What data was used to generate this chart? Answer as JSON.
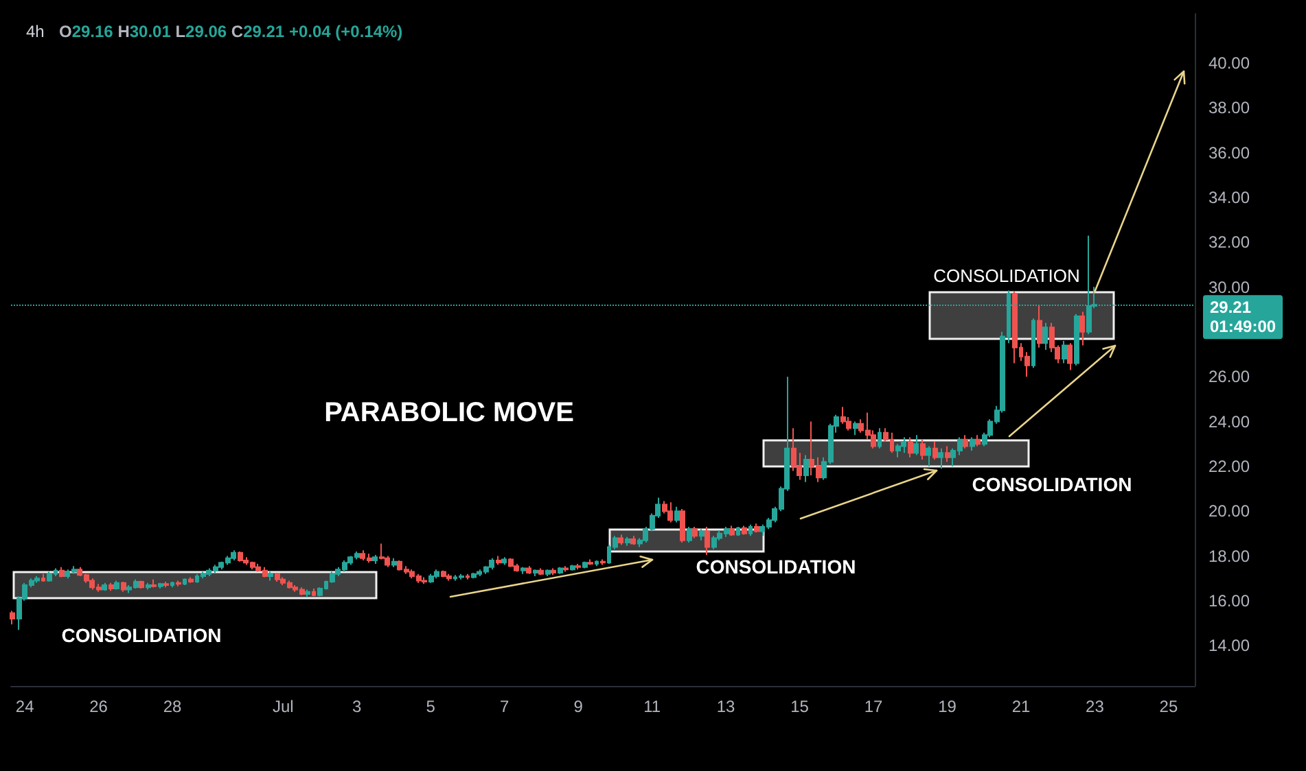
{
  "chart_data": {
    "type": "candlestick",
    "title": "4h",
    "subtitle": "O29.16 H30.01 L29.06 C29.21 +0.04 (+0.14%)",
    "x": [
      "--06-23T16:00",
      "--06-23T20:00",
      "--06-24T00:00",
      "--06-24T04:00",
      "--06-24T08:00",
      "--06-24T12:00",
      "--06-24T16:00",
      "--06-24T20:00",
      "--06-25T00:00",
      "--06-25T04:00",
      "--06-25T08:00",
      "--06-25T12:00",
      "--06-25T16:00",
      "--06-25T20:00",
      "--06-26T00:00",
      "--06-26T04:00",
      "--06-26T08:00",
      "--06-26T12:00",
      "--06-26T16:00",
      "--06-26T20:00",
      "--06-27T00:00",
      "--06-27T04:00",
      "--06-27T08:00",
      "--06-27T12:00",
      "--06-27T16:00",
      "--06-27T20:00",
      "--06-28T00:00",
      "--06-28T04:00",
      "--06-28T08:00",
      "--06-28T12:00",
      "--06-28T16:00",
      "--06-28T20:00",
      "--06-29T00:00",
      "--06-29T04:00",
      "--06-29T08:00",
      "--06-29T12:00",
      "--06-29T16:00",
      "--06-29T20:00",
      "--06-30T00:00",
      "--06-30T04:00",
      "--06-30T08:00",
      "--06-30T12:00",
      "--06-30T16:00",
      "--06-30T20:00",
      "--07-01T00:00",
      "--07-01T04:00",
      "--07-01T08:00",
      "--07-01T12:00",
      "--07-01T16:00",
      "--07-01T20:00",
      "--07-02T00:00",
      "--07-02T04:00",
      "--07-02T08:00",
      "--07-02T12:00",
      "--07-02T16:00",
      "--07-02T20:00",
      "--07-03T00:00",
      "--07-03T04:00",
      "--07-03T08:00",
      "--07-03T12:00",
      "--07-03T16:00",
      "--07-03T20:00",
      "--07-04T00:00",
      "--07-04T04:00",
      "--07-04T08:00",
      "--07-04T12:00",
      "--07-04T16:00",
      "--07-04T20:00",
      "--07-05T00:00",
      "--07-05T04:00",
      "--07-05T08:00",
      "--07-05T12:00",
      "--07-05T16:00",
      "--07-05T20:00",
      "--07-06T00:00",
      "--07-06T04:00",
      "--07-06T08:00",
      "--07-06T12:00",
      "--07-06T16:00",
      "--07-06T20:00",
      "--07-07T00:00",
      "--07-07T04:00",
      "--07-07T08:00",
      "--07-07T12:00",
      "--07-07T16:00",
      "--07-07T20:00",
      "--07-08T00:00",
      "--07-08T04:00",
      "--07-08T08:00",
      "--07-08T12:00",
      "--07-08T16:00",
      "--07-08T20:00",
      "--07-09T00:00",
      "--07-09T04:00",
      "--07-09T08:00",
      "--07-09T12:00",
      "--07-09T16:00",
      "--07-09T20:00",
      "--07-10T00:00",
      "--07-10T04:00",
      "--07-10T08:00",
      "--07-10T12:00",
      "--07-10T16:00",
      "--07-10T20:00",
      "--07-11T00:00",
      "--07-11T04:00",
      "--07-11T08:00",
      "--07-11T12:00",
      "--07-11T16:00",
      "--07-11T20:00",
      "--07-12T00:00",
      "--07-12T04:00",
      "--07-12T08:00",
      "--07-12T12:00",
      "--07-12T16:00",
      "--07-12T20:00",
      "--07-13T00:00",
      "--07-13T04:00",
      "--07-13T08:00",
      "--07-13T12:00",
      "--07-13T16:00",
      "--07-13T20:00",
      "--07-14T00:00",
      "--07-14T04:00",
      "--07-14T08:00",
      "--07-14T12:00",
      "--07-14T16:00",
      "--07-14T20:00",
      "--07-15T00:00",
      "--07-15T04:00",
      "--07-15T08:00",
      "--07-15T12:00",
      "--07-15T16:00",
      "--07-15T20:00",
      "--07-16T00:00",
      "--07-16T04:00",
      "--07-16T08:00",
      "--07-16T12:00",
      "--07-16T16:00",
      "--07-16T20:00",
      "--07-17T00:00",
      "--07-17T04:00",
      "--07-17T08:00",
      "--07-17T12:00",
      "--07-17T16:00",
      "--07-17T20:00",
      "--07-18T00:00",
      "--07-18T04:00",
      "--07-18T08:00",
      "--07-18T12:00",
      "--07-18T16:00",
      "--07-18T20:00",
      "--07-19T00:00",
      "--07-19T04:00",
      "--07-19T08:00",
      "--07-19T12:00",
      "--07-19T16:00",
      "--07-19T20:00",
      "--07-20T00:00",
      "--07-20T04:00",
      "--07-20T08:00",
      "--07-20T12:00",
      "--07-20T16:00",
      "--07-20T20:00",
      "--07-21T00:00",
      "--07-21T04:00",
      "--07-21T08:00",
      "--07-21T12:00",
      "--07-21T16:00",
      "--07-21T20:00",
      "--07-22T00:00",
      "--07-22T04:00",
      "--07-22T08:00",
      "--07-22T12:00",
      "--07-22T16:00",
      "--07-22T20:00",
      "--07-23T00:00"
    ],
    "ohlc": [
      [
        15.45,
        15.55,
        14.95,
        15.2
      ],
      [
        15.2,
        16.2,
        14.7,
        16.1
      ],
      [
        16.1,
        16.8,
        16.0,
        16.7
      ],
      [
        16.7,
        17.0,
        16.6,
        16.9
      ],
      [
        16.9,
        17.1,
        16.8,
        17.0
      ],
      [
        17.0,
        17.2,
        16.85,
        16.9
      ],
      [
        16.9,
        17.3,
        16.85,
        17.2
      ],
      [
        17.2,
        17.45,
        17.1,
        17.35
      ],
      [
        17.35,
        17.5,
        17.05,
        17.1
      ],
      [
        17.1,
        17.4,
        17.0,
        17.3
      ],
      [
        17.3,
        17.55,
        17.2,
        17.4
      ],
      [
        17.4,
        17.5,
        17.1,
        17.15
      ],
      [
        17.15,
        17.2,
        16.8,
        16.9
      ],
      [
        16.9,
        17.0,
        16.5,
        16.6
      ],
      [
        16.6,
        16.75,
        16.4,
        16.5
      ],
      [
        16.5,
        16.8,
        16.45,
        16.7
      ],
      [
        16.7,
        16.8,
        16.45,
        16.55
      ],
      [
        16.55,
        16.9,
        16.5,
        16.8
      ],
      [
        16.8,
        16.85,
        16.4,
        16.5
      ],
      [
        16.5,
        16.7,
        16.35,
        16.6
      ],
      [
        16.6,
        16.95,
        16.55,
        16.85
      ],
      [
        16.85,
        16.9,
        16.55,
        16.6
      ],
      [
        16.6,
        16.8,
        16.5,
        16.7
      ],
      [
        16.7,
        16.95,
        16.6,
        16.65
      ],
      [
        16.65,
        16.8,
        16.55,
        16.75
      ],
      [
        16.75,
        16.85,
        16.6,
        16.7
      ],
      [
        16.7,
        16.85,
        16.6,
        16.8
      ],
      [
        16.8,
        16.9,
        16.65,
        16.75
      ],
      [
        16.75,
        17.0,
        16.7,
        16.95
      ],
      [
        16.95,
        17.05,
        16.8,
        16.85
      ],
      [
        16.85,
        17.2,
        16.8,
        17.1
      ],
      [
        17.1,
        17.3,
        17.0,
        17.2
      ],
      [
        17.2,
        17.45,
        17.1,
        17.35
      ],
      [
        17.35,
        17.6,
        17.25,
        17.5
      ],
      [
        17.5,
        17.75,
        17.4,
        17.7
      ],
      [
        17.7,
        18.0,
        17.6,
        17.9
      ],
      [
        17.9,
        18.25,
        17.8,
        18.15
      ],
      [
        18.15,
        18.2,
        17.75,
        17.8
      ],
      [
        17.8,
        17.95,
        17.6,
        17.7
      ],
      [
        17.7,
        17.75,
        17.4,
        17.5
      ],
      [
        17.5,
        17.65,
        17.3,
        17.35
      ],
      [
        17.35,
        17.5,
        17.05,
        17.1
      ],
      [
        17.1,
        17.3,
        16.9,
        17.2
      ],
      [
        17.2,
        17.25,
        16.85,
        16.95
      ],
      [
        16.95,
        17.05,
        16.7,
        16.8
      ],
      [
        16.8,
        16.9,
        16.55,
        16.6
      ],
      [
        16.6,
        16.7,
        16.4,
        16.5
      ],
      [
        16.5,
        16.6,
        16.25,
        16.3
      ],
      [
        16.3,
        16.5,
        16.15,
        16.4
      ],
      [
        16.4,
        16.55,
        16.2,
        16.25
      ],
      [
        16.25,
        16.6,
        16.2,
        16.55
      ],
      [
        16.55,
        16.9,
        16.5,
        16.85
      ],
      [
        16.85,
        17.3,
        16.8,
        17.2
      ],
      [
        17.2,
        17.5,
        17.1,
        17.4
      ],
      [
        17.4,
        17.8,
        17.3,
        17.7
      ],
      [
        17.7,
        18.0,
        17.6,
        17.95
      ],
      [
        17.95,
        18.2,
        17.85,
        18.1
      ],
      [
        18.1,
        18.25,
        17.8,
        17.9
      ],
      [
        17.9,
        18.1,
        17.7,
        17.8
      ],
      [
        17.8,
        18.05,
        17.65,
        17.95
      ],
      [
        17.95,
        18.55,
        17.85,
        17.9
      ],
      [
        17.9,
        18.0,
        17.5,
        17.6
      ],
      [
        17.6,
        17.9,
        17.5,
        17.75
      ],
      [
        17.75,
        17.8,
        17.35,
        17.4
      ],
      [
        17.4,
        17.55,
        17.2,
        17.3
      ],
      [
        17.3,
        17.4,
        17.0,
        17.1
      ],
      [
        17.1,
        17.2,
        16.8,
        16.9
      ],
      [
        16.9,
        17.05,
        16.75,
        16.85
      ],
      [
        16.85,
        17.2,
        16.8,
        17.1
      ],
      [
        17.1,
        17.4,
        17.0,
        17.3
      ],
      [
        17.3,
        17.35,
        17.05,
        17.1
      ],
      [
        17.1,
        17.2,
        16.9,
        17.0
      ],
      [
        17.0,
        17.15,
        16.9,
        17.05
      ],
      [
        17.05,
        17.2,
        16.95,
        17.1
      ],
      [
        17.1,
        17.2,
        16.95,
        17.05
      ],
      [
        17.05,
        17.25,
        17.0,
        17.2
      ],
      [
        17.2,
        17.4,
        17.1,
        17.3
      ],
      [
        17.3,
        17.55,
        17.2,
        17.5
      ],
      [
        17.5,
        17.9,
        17.4,
        17.8
      ],
      [
        17.8,
        18.0,
        17.6,
        17.7
      ],
      [
        17.7,
        17.95,
        17.6,
        17.85
      ],
      [
        17.85,
        17.9,
        17.5,
        17.55
      ],
      [
        17.55,
        17.65,
        17.3,
        17.35
      ],
      [
        17.35,
        17.5,
        17.2,
        17.45
      ],
      [
        17.45,
        17.55,
        17.2,
        17.25
      ],
      [
        17.25,
        17.4,
        17.1,
        17.35
      ],
      [
        17.35,
        17.45,
        17.15,
        17.2
      ],
      [
        17.2,
        17.4,
        17.1,
        17.35
      ],
      [
        17.35,
        17.45,
        17.15,
        17.25
      ],
      [
        17.25,
        17.5,
        17.2,
        17.45
      ],
      [
        17.45,
        17.55,
        17.3,
        17.4
      ],
      [
        17.4,
        17.6,
        17.35,
        17.55
      ],
      [
        17.55,
        17.65,
        17.4,
        17.5
      ],
      [
        17.5,
        17.75,
        17.45,
        17.7
      ],
      [
        17.7,
        17.85,
        17.6,
        17.65
      ],
      [
        17.65,
        17.8,
        17.55,
        17.75
      ],
      [
        17.75,
        17.85,
        17.6,
        17.7
      ],
      [
        17.7,
        18.5,
        17.65,
        18.4
      ],
      [
        18.4,
        18.9,
        18.3,
        18.8
      ],
      [
        18.8,
        18.95,
        18.5,
        18.6
      ],
      [
        18.6,
        18.85,
        18.45,
        18.75
      ],
      [
        18.75,
        18.9,
        18.5,
        18.55
      ],
      [
        18.55,
        18.8,
        18.4,
        18.7
      ],
      [
        18.7,
        19.3,
        18.6,
        19.2
      ],
      [
        19.2,
        19.9,
        19.1,
        19.8
      ],
      [
        19.8,
        20.6,
        19.7,
        20.3
      ],
      [
        20.3,
        20.45,
        19.9,
        20.0
      ],
      [
        20.0,
        20.4,
        19.5,
        19.6
      ],
      [
        19.6,
        20.2,
        19.5,
        20.0
      ],
      [
        20.0,
        20.1,
        18.6,
        18.7
      ],
      [
        18.7,
        19.3,
        18.6,
        19.2
      ],
      [
        19.2,
        19.3,
        18.8,
        18.9
      ],
      [
        18.9,
        19.2,
        18.7,
        19.1
      ],
      [
        19.1,
        19.3,
        18.05,
        18.4
      ],
      [
        18.4,
        18.9,
        18.3,
        18.8
      ],
      [
        18.8,
        19.15,
        18.7,
        19.0
      ],
      [
        19.0,
        19.3,
        18.85,
        19.2
      ],
      [
        19.2,
        19.35,
        18.9,
        18.95
      ],
      [
        18.95,
        19.3,
        18.9,
        19.25
      ],
      [
        19.25,
        19.35,
        18.95,
        19.0
      ],
      [
        19.0,
        19.4,
        18.9,
        19.3
      ],
      [
        19.3,
        19.45,
        19.05,
        19.1
      ],
      [
        19.1,
        19.4,
        18.9,
        19.3
      ],
      [
        19.3,
        19.7,
        19.2,
        19.6
      ],
      [
        19.6,
        20.2,
        19.5,
        20.1
      ],
      [
        20.1,
        21.1,
        20.0,
        21.0
      ],
      [
        21.0,
        26.0,
        20.9,
        22.8
      ],
      [
        22.8,
        23.7,
        21.8,
        22.0
      ],
      [
        22.0,
        22.6,
        21.4,
        21.6
      ],
      [
        21.6,
        22.5,
        21.3,
        22.3
      ],
      [
        22.3,
        24.0,
        21.6,
        22.0
      ],
      [
        22.0,
        22.4,
        21.3,
        21.5
      ],
      [
        21.5,
        22.4,
        21.4,
        22.2
      ],
      [
        22.2,
        23.9,
        22.1,
        23.8
      ],
      [
        23.8,
        24.3,
        23.5,
        24.2
      ],
      [
        24.2,
        24.65,
        23.9,
        24.0
      ],
      [
        24.0,
        24.2,
        23.6,
        23.7
      ],
      [
        23.7,
        24.0,
        23.4,
        23.9
      ],
      [
        23.9,
        24.1,
        23.5,
        23.6
      ],
      [
        23.6,
        24.4,
        23.2,
        23.4
      ],
      [
        23.4,
        23.6,
        22.8,
        22.9
      ],
      [
        22.9,
        23.7,
        22.8,
        23.5
      ],
      [
        23.5,
        23.7,
        23.1,
        23.2
      ],
      [
        23.2,
        23.5,
        22.6,
        22.7
      ],
      [
        22.7,
        23.0,
        22.4,
        22.9
      ],
      [
        22.9,
        23.3,
        22.6,
        23.1
      ],
      [
        23.1,
        23.3,
        22.4,
        22.6
      ],
      [
        22.6,
        23.4,
        22.5,
        23.0
      ],
      [
        23.0,
        23.2,
        22.3,
        22.5
      ],
      [
        22.5,
        22.9,
        22.0,
        22.8
      ],
      [
        22.8,
        23.1,
        22.3,
        22.4
      ],
      [
        22.4,
        22.8,
        21.9,
        22.6
      ],
      [
        22.6,
        22.9,
        22.2,
        22.4
      ],
      [
        22.4,
        22.8,
        22.0,
        22.7
      ],
      [
        22.7,
        23.3,
        22.5,
        23.2
      ],
      [
        23.2,
        23.4,
        22.8,
        22.9
      ],
      [
        22.9,
        23.3,
        22.7,
        23.2
      ],
      [
        23.2,
        23.4,
        22.9,
        23.0
      ],
      [
        23.0,
        23.5,
        22.9,
        23.4
      ],
      [
        23.4,
        24.1,
        23.3,
        24.0
      ],
      [
        24.0,
        24.7,
        23.9,
        24.5
      ],
      [
        24.5,
        28.0,
        24.4,
        27.8
      ],
      [
        27.8,
        29.85,
        27.5,
        29.7
      ],
      [
        29.7,
        29.8,
        26.6,
        27.3
      ],
      [
        27.3,
        27.5,
        26.7,
        26.9
      ],
      [
        26.9,
        27.1,
        26.0,
        26.5
      ],
      [
        26.5,
        28.6,
        26.4,
        28.5
      ],
      [
        28.5,
        29.2,
        27.3,
        27.5
      ],
      [
        27.5,
        28.4,
        27.2,
        28.2
      ],
      [
        28.2,
        28.4,
        27.1,
        27.3
      ],
      [
        27.3,
        27.4,
        26.6,
        26.8
      ],
      [
        26.8,
        27.6,
        26.6,
        27.4
      ],
      [
        27.4,
        27.5,
        26.3,
        26.6
      ],
      [
        26.6,
        28.8,
        26.5,
        28.7
      ],
      [
        28.7,
        28.9,
        27.4,
        28.0
      ],
      [
        28.0,
        32.3,
        27.9,
        29.16
      ],
      [
        29.16,
        30.01,
        29.06,
        29.21
      ]
    ],
    "colors": [
      "#ef5350",
      "#26a69a",
      "#26a69a",
      "#26a69a",
      "#26a69a",
      "#ef5350",
      "#26a69a",
      "#26a69a",
      "#ef5350",
      "#26a69a",
      "#26a69a",
      "#ef5350",
      "#ef5350",
      "#ef5350",
      "#ef5350",
      "#26a69a",
      "#ef5350",
      "#26a69a",
      "#ef5350",
      "#26a69a",
      "#26a69a",
      "#ef5350",
      "#26a69a",
      "#ef5350",
      "#26a69a",
      "#ef5350",
      "#26a69a",
      "#ef5350",
      "#26a69a",
      "#ef5350",
      "#26a69a",
      "#26a69a",
      "#26a69a",
      "#26a69a",
      "#26a69a",
      "#26a69a",
      "#26a69a",
      "#ef5350",
      "#ef5350",
      "#ef5350",
      "#ef5350",
      "#ef5350",
      "#26a69a",
      "#ef5350",
      "#ef5350",
      "#ef5350",
      "#ef5350",
      "#ef5350",
      "#26a69a",
      "#ef5350",
      "#26a69a",
      "#26a69a",
      "#26a69a",
      "#26a69a",
      "#26a69a",
      "#26a69a",
      "#26a69a",
      "#ef5350",
      "#ef5350",
      "#26a69a",
      "#ef5350",
      "#ef5350",
      "#26a69a",
      "#ef5350",
      "#ef5350",
      "#ef5350",
      "#ef5350",
      "#ef5350",
      "#26a69a",
      "#26a69a",
      "#ef5350",
      "#ef5350",
      "#26a69a",
      "#26a69a",
      "#ef5350",
      "#26a69a",
      "#26a69a",
      "#26a69a",
      "#26a69a",
      "#ef5350",
      "#26a69a",
      "#ef5350",
      "#ef5350",
      "#26a69a",
      "#ef5350",
      "#26a69a",
      "#ef5350",
      "#26a69a",
      "#ef5350",
      "#26a69a",
      "#ef5350",
      "#26a69a",
      "#ef5350",
      "#26a69a",
      "#ef5350",
      "#26a69a",
      "#ef5350",
      "#26a69a",
      "#26a69a",
      "#ef5350",
      "#26a69a",
      "#ef5350",
      "#26a69a",
      "#26a69a",
      "#26a69a",
      "#26a69a",
      "#ef5350",
      "#ef5350",
      "#26a69a",
      "#ef5350",
      "#26a69a",
      "#ef5350",
      "#26a69a",
      "#ef5350",
      "#26a69a",
      "#26a69a",
      "#26a69a",
      "#ef5350",
      "#26a69a",
      "#ef5350",
      "#26a69a",
      "#ef5350",
      "#26a69a",
      "#26a69a",
      "#26a69a",
      "#26a69a",
      "#26a69a",
      "#ef5350",
      "#ef5350",
      "#26a69a",
      "#ef5350",
      "#ef5350",
      "#26a69a",
      "#26a69a",
      "#26a69a",
      "#ef5350",
      "#ef5350",
      "#26a69a",
      "#ef5350",
      "#ef5350",
      "#ef5350",
      "#26a69a",
      "#ef5350",
      "#ef5350",
      "#26a69a",
      "#26a69a",
      "#ef5350",
      "#26a69a",
      "#ef5350",
      "#26a69a",
      "#ef5350",
      "#26a69a",
      "#ef5350",
      "#26a69a",
      "#26a69a",
      "#ef5350",
      "#26a69a",
      "#ef5350",
      "#26a69a",
      "#26a69a",
      "#26a69a",
      "#26a69a",
      "#26a69a",
      "#ef5350",
      "#ef5350",
      "#ef5350",
      "#26a69a",
      "#ef5350",
      "#26a69a",
      "#ef5350",
      "#ef5350",
      "#26a69a",
      "#ef5350",
      "#26a69a",
      "#ef5350",
      "#26a69a",
      "#26a69a"
    ],
    "xlim": [
      "--06-23T15:00",
      "--07-25T17:00"
    ],
    "xticks": [
      {
        "value": "--06-24",
        "label": "24"
      },
      {
        "value": "--06-26",
        "label": "26"
      },
      {
        "value": "--06-28",
        "label": "28"
      },
      {
        "value": "--07-01",
        "label": "Jul"
      },
      {
        "value": "--07-03",
        "label": "3"
      },
      {
        "value": "--07-05",
        "label": "5"
      },
      {
        "value": "--07-07",
        "label": "7"
      },
      {
        "value": "--07-09",
        "label": "9"
      },
      {
        "value": "--07-11",
        "label": "11"
      },
      {
        "value": "--07-13",
        "label": "13"
      },
      {
        "value": "--07-15",
        "label": "15"
      },
      {
        "value": "--07-17",
        "label": "17"
      },
      {
        "value": "--07-19",
        "label": "19"
      },
      {
        "value": "--07-21",
        "label": "21"
      },
      {
        "value": "--07-23",
        "label": "23"
      },
      {
        "value": "--07-25",
        "label": "25"
      }
    ],
    "ylim": [
      12.2,
      42.2
    ],
    "yticks": [
      {
        "value": 14,
        "label": "14.00"
      },
      {
        "value": 16,
        "label": "16.00"
      },
      {
        "value": 18,
        "label": "18.00"
      },
      {
        "value": 20,
        "label": "20.00"
      },
      {
        "value": 22,
        "label": "22.00"
      },
      {
        "value": 24,
        "label": "24.00"
      },
      {
        "value": 26,
        "label": "26.00"
      },
      {
        "value": 30,
        "label": "30.00"
      },
      {
        "value": 32,
        "label": "32.00"
      },
      {
        "value": 34,
        "label": "34.00"
      },
      {
        "value": 36,
        "label": "36.00"
      },
      {
        "value": 38,
        "label": "38.00"
      },
      {
        "value": 40,
        "label": "40.00"
      }
    ],
    "ref_lines": [
      {
        "axis": "y",
        "value": 29.21,
        "label": "29.21\n01:49:00",
        "color": "#26a69a",
        "line_style": "dotted"
      }
    ],
    "annotations": [
      "PARABOLIC MOVE",
      "CONSOLIDATION",
      "CONSOLIDATION",
      "CONSOLIDATION",
      "CONSOLIDATION"
    ]
  }
}
